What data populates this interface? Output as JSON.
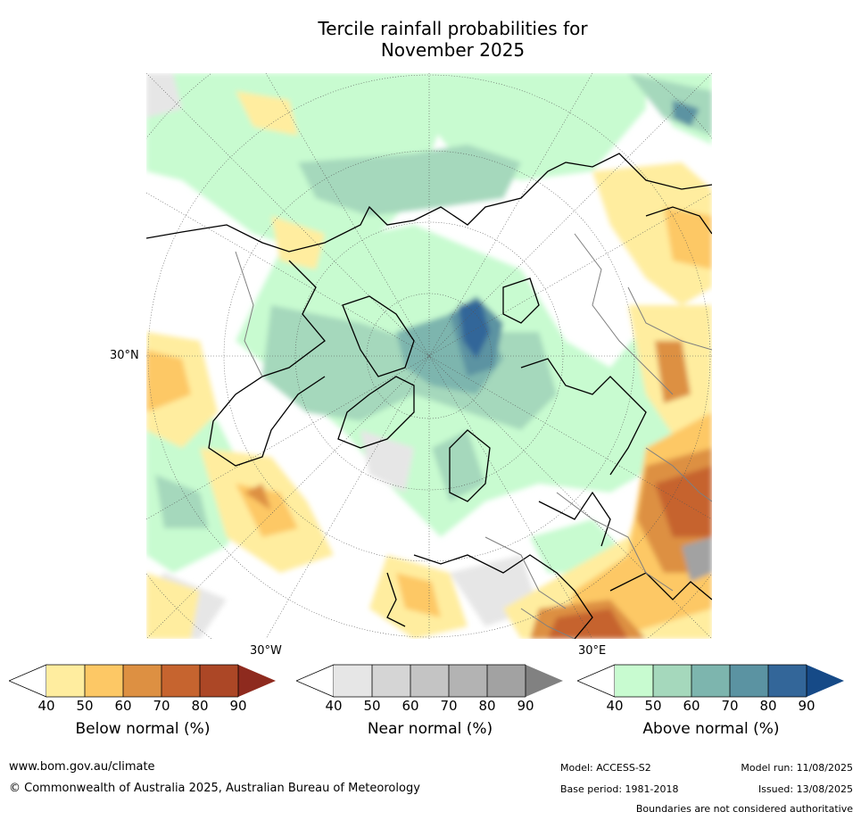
{
  "title_line1": "Tercile rainfall probabilities for",
  "title_line2": "November 2025",
  "map": {
    "lat_label": "30°N",
    "lon_label_west": "30°W",
    "lon_label_east": "30°E"
  },
  "colorbars": [
    {
      "label": "Below normal (%)",
      "ticks": [
        "40",
        "50",
        "60",
        "70",
        "80",
        "90"
      ],
      "colors": [
        "#ffed9f",
        "#fdc865",
        "#dd9042",
        "#c6642f",
        "#ac4726",
        "#8e2a1e"
      ]
    },
    {
      "label": "Near normal (%)",
      "ticks": [
        "40",
        "50",
        "60",
        "70",
        "80",
        "90"
      ],
      "colors": [
        "#e6e6e6",
        "#d5d5d5",
        "#c4c4c4",
        "#b3b3b3",
        "#a2a2a2",
        "#818181"
      ]
    },
    {
      "label": "Above normal (%)",
      "ticks": [
        "40",
        "50",
        "60",
        "70",
        "80",
        "90"
      ],
      "colors": [
        "#c8fbd0",
        "#a5d8bc",
        "#7db5ae",
        "#5b93a2",
        "#336699",
        "#164a87"
      ]
    }
  ],
  "footer": {
    "website": "www.bom.gov.au/climate",
    "copyright": "© Commonwealth of Australia 2025, Australian Bureau of Meteorology",
    "model": "Model: ACCESS-S2",
    "base_period": "Base period: 1981-2018",
    "model_run": "Model run: 11/08/2025",
    "issued": "Issued: 13/08/2025",
    "disclaimer": "Boundaries are not considered authoritative"
  }
}
